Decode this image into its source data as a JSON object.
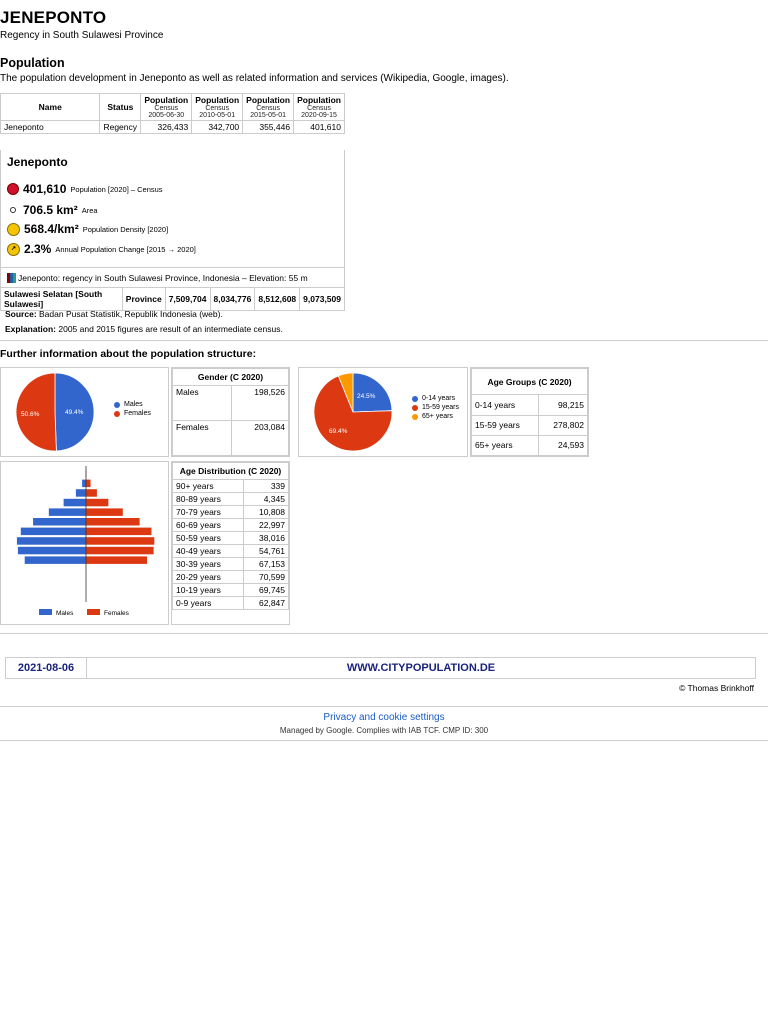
{
  "title": "JENEPONTO",
  "subtitle": "Regency in South Sulawesi Province",
  "population_section": {
    "heading": "Population",
    "description": "The population development in Jeneponto as well as related information and services (Wikipedia, Google, images)."
  },
  "pop_table": {
    "col_name": "Name",
    "col_status": "Status",
    "censuses": [
      {
        "label": "Population",
        "type": "Census",
        "date": "2005-06-30"
      },
      {
        "label": "Population",
        "type": "Census",
        "date": "2010-05-01"
      },
      {
        "label": "Population",
        "type": "Census",
        "date": "2015-05-01"
      },
      {
        "label": "Population",
        "type": "Census",
        "date": "2020-09-15"
      }
    ],
    "row": {
      "name": "Jeneponto",
      "status": "Regency",
      "values": [
        "326,433",
        "342,700",
        "355,446",
        "401,610"
      ]
    }
  },
  "card": {
    "title": "Jeneponto",
    "population": {
      "value": "401,610",
      "label": "Population [2020] – Census"
    },
    "area": {
      "value": "706.5 km²",
      "label": "Area"
    },
    "density": {
      "value": "568.4/km²",
      "label": "Population Density [2020]"
    },
    "change": {
      "value": "2.3%",
      "label": "Annual Population Change [2015 → 2020]"
    },
    "region_line": "Jeneponto: regency in South Sulawesi Province, Indonesia – Elevation: 55 m"
  },
  "province_row": {
    "name": "Sulawesi Selatan [South Sulawesi]",
    "status": "Province",
    "values": [
      "7,509,704",
      "8,034,776",
      "8,512,608",
      "9,073,509"
    ]
  },
  "source": {
    "label": "Source:",
    "text": " Badan Pusat Statistik, Republik Indonesia (web)."
  },
  "explanation": {
    "label": "Explanation:",
    "text": " 2005 and 2015 figures are result of an intermediate census."
  },
  "further_heading": "Further information about the population structure:",
  "gender": {
    "title": "Gender (C 2020)",
    "rows": [
      {
        "label": "Males",
        "value": "198,526"
      },
      {
        "label": "Females",
        "value": "203,084"
      }
    ],
    "legend": [
      "Males",
      "Females"
    ],
    "pct_labels": [
      "49.4%",
      "50.6%"
    ]
  },
  "age_groups": {
    "title": "Age Groups (C 2020)",
    "rows": [
      {
        "label": "0-14 years",
        "value": "98,215"
      },
      {
        "label": "15-59 years",
        "value": "278,802"
      },
      {
        "label": "65+ years",
        "value": "24,593"
      }
    ],
    "legend": [
      "0-14 years",
      "15-59 years",
      "65+ years"
    ],
    "pct_labels": [
      "24.5%",
      "69.4%"
    ]
  },
  "age_distribution": {
    "title": "Age Distribution (C 2020)",
    "rows": [
      {
        "label": "90+ years",
        "value": "339"
      },
      {
        "label": "80-89 years",
        "value": "4,345"
      },
      {
        "label": "70-79 years",
        "value": "10,808"
      },
      {
        "label": "60-69 years",
        "value": "22,997"
      },
      {
        "label": "50-59 years",
        "value": "38,016"
      },
      {
        "label": "40-49 years",
        "value": "54,761"
      },
      {
        "label": "30-39 years",
        "value": "67,153"
      },
      {
        "label": "20-29 years",
        "value": "70,599"
      },
      {
        "label": "10-19 years",
        "value": "69,745"
      },
      {
        "label": "0-9 years",
        "value": "62,847"
      }
    ],
    "legend": [
      "Males",
      "Females"
    ]
  },
  "chart_data": [
    {
      "type": "pie",
      "categories": [
        "Males",
        "Females"
      ],
      "values": [
        198526,
        203084
      ],
      "colors": [
        "#3366cc",
        "#dc3912"
      ]
    },
    {
      "type": "pie",
      "categories": [
        "0-14 years",
        "15-59 years",
        "65+ years"
      ],
      "values": [
        98215,
        278802,
        24593
      ],
      "colors": [
        "#3366cc",
        "#dc3912",
        "#ff9900"
      ]
    },
    {
      "type": "bar",
      "categories": [
        "90+",
        "80-89",
        "70-79",
        "60-69",
        "50-59",
        "40-49",
        "30-39",
        "20-29",
        "10-19",
        "0-9"
      ],
      "series": [
        {
          "name": "Males",
          "values": [
            150,
            2000,
            5200,
            11500,
            19100,
            27200,
            33500,
            35500,
            35000,
            31500
          ]
        },
        {
          "name": "Females",
          "values": [
            189,
            2345,
            5608,
            11497,
            18916,
            27561,
            33653,
            35099,
            34745,
            31347
          ]
        }
      ],
      "colors": [
        "#3366cc",
        "#dc3912"
      ]
    }
  ],
  "footer": {
    "date": "2021-08-06",
    "site": "WWW.CITYPOPULATION.DE",
    "copyright": "© Thomas Brinkhoff"
  },
  "consent": {
    "privacy": "Privacy and cookie settings",
    "managed": "Managed by Google. Complies with IAB TCF. CMP ID: 300"
  }
}
